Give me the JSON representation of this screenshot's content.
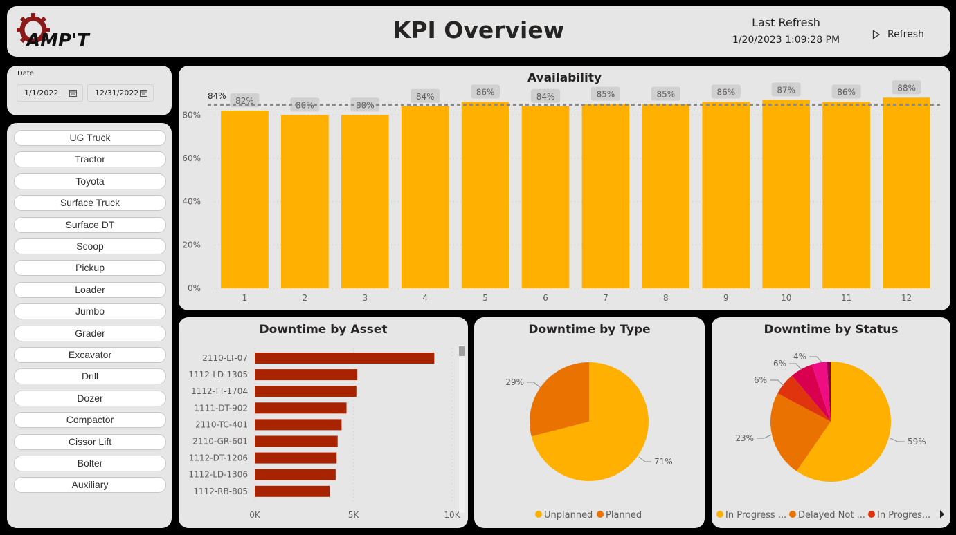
{
  "header": {
    "logo_text": "AMP'T",
    "title": "KPI Overview",
    "last_refresh_label": "Last Refresh",
    "last_refresh_time": "1/20/2023 1:09:28 PM",
    "refresh_button": "Refresh"
  },
  "date_filter": {
    "title": "Date",
    "start": "1/1/2022",
    "end": "12/31/2022"
  },
  "asset_types": [
    "UG Truck",
    "Tractor",
    "Toyota",
    "Surface Truck",
    "Surface DT",
    "Scoop",
    "Pickup",
    "Loader",
    "Jumbo",
    "Grader",
    "Excavator",
    "Drill",
    "Dozer",
    "Compactor",
    "Cissor Lift",
    "Bolter",
    "Auxiliary"
  ],
  "colors": {
    "bar_orange": "#ffb000",
    "bar_red": "#a82400",
    "pie_orange_dark": "#e97200",
    "pie_red": "#e0340f",
    "pie_crimson": "#d8004f",
    "pie_pink": "#ef0d84",
    "pie_purple": "#8c0055",
    "card_bg": "#e6e6e6"
  },
  "chart_data": [
    {
      "type": "bar",
      "title": "Availability",
      "categories": [
        "1",
        "2",
        "3",
        "4",
        "5",
        "6",
        "7",
        "8",
        "9",
        "10",
        "11",
        "12"
      ],
      "values": [
        82,
        80,
        80,
        84,
        86,
        84,
        85,
        85,
        86,
        87,
        86,
        88
      ],
      "data_labels": [
        "82%",
        "80%",
        "80%",
        "84%",
        "86%",
        "84%",
        "85%",
        "85%",
        "86%",
        "87%",
        "86%",
        "88%"
      ],
      "average_line": 84,
      "average_label": "84%",
      "ylim": [
        0,
        90
      ],
      "yticks": [
        "0%",
        "20%",
        "40%",
        "60%",
        "80%"
      ],
      "grid": true
    },
    {
      "type": "bar",
      "orientation": "horizontal",
      "title": "Downtime by Asset",
      "categories": [
        "2110-LT-07",
        "1112-LD-1305",
        "1112-TT-1704",
        "1111-DT-902",
        "2110-TC-401",
        "2110-GR-601",
        "1112-DT-1206",
        "1112-LD-1306",
        "1112-RB-805"
      ],
      "values": [
        9100,
        5200,
        5150,
        4650,
        4400,
        4200,
        4150,
        4100,
        3800
      ],
      "xlim": [
        0,
        10000
      ],
      "xticks": [
        "0K",
        "5K",
        "10K"
      ]
    },
    {
      "type": "pie",
      "title": "Downtime by Type",
      "slices": [
        {
          "label": "Unplanned",
          "value": 71,
          "text": "71%"
        },
        {
          "label": "Planned",
          "value": 29,
          "text": "29%"
        }
      ],
      "legend": "bottom"
    },
    {
      "type": "pie",
      "title": "Downtime by Status",
      "slices": [
        {
          "label": "In Progress ...",
          "value": 59,
          "text": "59%"
        },
        {
          "label": "Delayed Not ...",
          "value": 23,
          "text": "23%"
        },
        {
          "label": "In Progres...",
          "value": 6,
          "text": "6%"
        },
        {
          "label": "",
          "value": 6,
          "text": "6%"
        },
        {
          "label": "",
          "value": 4,
          "text": "4%"
        },
        {
          "label": "",
          "value": 1,
          "text": ""
        }
      ],
      "legend": "bottom"
    }
  ]
}
